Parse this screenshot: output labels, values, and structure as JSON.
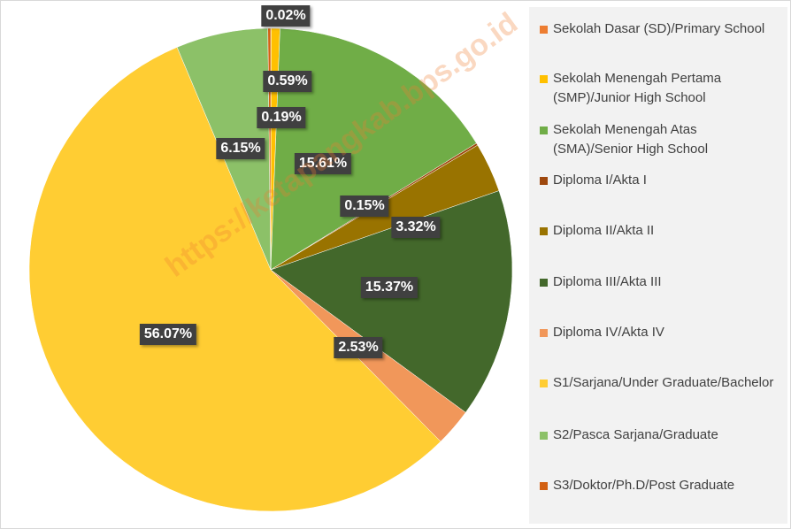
{
  "chart_data": {
    "type": "pie",
    "categories": [
      "Sekolah Dasar (SD)/Primary School",
      "Sekolah Menengah Pertama (SMP)/Junior High School",
      "Sekolah Menengah Atas (SMA)/Senior High School",
      "Diploma I/Akta I",
      "Diploma II/Akta II",
      "Diploma III/Akta III",
      "Diploma IV/Akta IV",
      "S1/Sarjana/Under Graduate/Bachelor",
      "S2/Pasca Sarjana/Graduate",
      "S3/Doktor/Ph.D/Post Graduate"
    ],
    "values": [
      0.02,
      0.59,
      15.61,
      0.15,
      3.32,
      15.37,
      2.53,
      56.07,
      6.15,
      0.19
    ],
    "value_labels": [
      "0.02%",
      "0.59%",
      "15.61%",
      "0.15%",
      "3.32%",
      "15.37%",
      "2.53%",
      "56.07%",
      "6.15%",
      "0.19%"
    ],
    "colors": [
      "#ed7d31",
      "#ffc000",
      "#70ad47",
      "#9e480e",
      "#997300",
      "#43682b",
      "#f1975a",
      "#ffcd33",
      "#8cc168",
      "#d26012"
    ],
    "legend": "right",
    "watermark": "https://ketapangkab.bps.go.id"
  }
}
